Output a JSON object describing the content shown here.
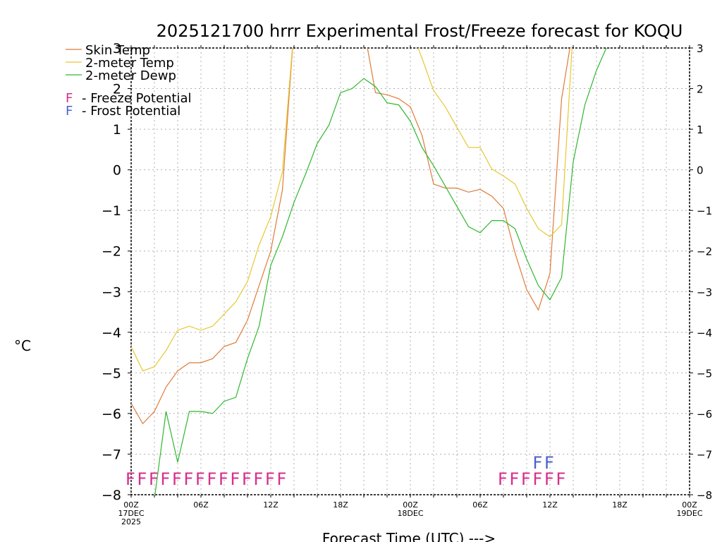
{
  "chart_data": {
    "type": "line",
    "title": "2025121700 hrrr Experimental Frost/Freeze forecast for KOQU",
    "ylabel": "°C",
    "xlabel": "Forecast Time (UTC) --->",
    "ylim": [
      -8,
      3
    ],
    "xlim": [
      0,
      48
    ],
    "y_ticks": [
      -8,
      -7,
      -6,
      -5,
      -4,
      -3,
      -2,
      -1,
      0,
      1,
      2,
      3
    ],
    "x_ticks": [
      {
        "x": 0,
        "label": "00Z",
        "sub": "17DEC",
        "sub2": "2025"
      },
      {
        "x": 6,
        "label": "06Z",
        "sub": "",
        "sub2": ""
      },
      {
        "x": 12,
        "label": "12Z",
        "sub": "",
        "sub2": ""
      },
      {
        "x": 18,
        "label": "18Z",
        "sub": "",
        "sub2": ""
      },
      {
        "x": 24,
        "label": "00Z",
        "sub": "18DEC",
        "sub2": ""
      },
      {
        "x": 30,
        "label": "06Z",
        "sub": "",
        "sub2": ""
      },
      {
        "x": 36,
        "label": "12Z",
        "sub": "",
        "sub2": ""
      },
      {
        "x": 42,
        "label": "18Z",
        "sub": "",
        "sub2": ""
      },
      {
        "x": 48,
        "label": "00Z",
        "sub": "19DEC",
        "sub2": ""
      }
    ],
    "grid": true,
    "series": [
      {
        "name": "Skin Temp",
        "color": "#e07b39",
        "x": [
          0,
          1,
          2,
          3,
          4,
          5,
          6,
          7,
          8,
          9,
          10,
          11,
          12,
          13,
          14,
          20,
          21,
          22,
          23,
          24,
          25,
          26,
          27,
          28,
          29,
          30,
          31,
          32,
          33,
          34,
          35,
          36,
          37,
          38
        ],
        "values": [
          -5.75,
          -6.25,
          -5.95,
          -5.35,
          -4.95,
          -4.75,
          -4.75,
          -4.65,
          -4.35,
          -4.25,
          -3.7,
          -2.85,
          -2.0,
          -0.5,
          3.5,
          3.5,
          1.9,
          1.85,
          1.75,
          1.55,
          0.85,
          -0.35,
          -0.45,
          -0.45,
          -0.55,
          -0.48,
          -0.65,
          -0.95,
          -2.05,
          -2.95,
          -3.45,
          -2.55,
          1.75,
          3.5
        ]
      },
      {
        "name": "2-meter Temp",
        "color": "#e6c832",
        "x": [
          0,
          1,
          2,
          3,
          4,
          5,
          6,
          7,
          8,
          9,
          10,
          11,
          12,
          13,
          14,
          24,
          25,
          26,
          27,
          28,
          29,
          30,
          31,
          32,
          33,
          34,
          35,
          36,
          37,
          38
        ],
        "values": [
          -4.35,
          -4.95,
          -4.85,
          -4.45,
          -3.95,
          -3.85,
          -3.95,
          -3.85,
          -3.55,
          -3.25,
          -2.75,
          -1.85,
          -1.15,
          -0.05,
          3.5,
          3.5,
          2.75,
          1.95,
          1.55,
          1.05,
          0.55,
          0.55,
          0.02,
          -0.15,
          -0.35,
          -0.95,
          -1.45,
          -1.65,
          -1.35,
          3.5
        ]
      },
      {
        "name": "2-meter Dewp",
        "color": "#2eb82e",
        "x": [
          2,
          3,
          4,
          5,
          6,
          7,
          8,
          9,
          10,
          11,
          12,
          13,
          14,
          15,
          16,
          17,
          18,
          19,
          20,
          21,
          22,
          23,
          24,
          25,
          26,
          27,
          28,
          29,
          30,
          31,
          32,
          33,
          34,
          35,
          36,
          37,
          38,
          39,
          40,
          41
        ],
        "values": [
          -8.1,
          -5.95,
          -7.2,
          -5.95,
          -5.95,
          -6.0,
          -5.7,
          -5.6,
          -4.65,
          -3.85,
          -2.35,
          -1.65,
          -0.8,
          -0.1,
          0.65,
          1.1,
          1.9,
          2.0,
          2.25,
          2.05,
          1.65,
          1.6,
          1.2,
          0.55,
          0.1,
          -0.4,
          -0.9,
          -1.4,
          -1.55,
          -1.25,
          -1.25,
          -1.45,
          -2.2,
          -2.85,
          -3.2,
          -2.65,
          0.2,
          1.6,
          2.45,
          3.1
        ]
      }
    ],
    "legend": {
      "placement": "top-left",
      "items": [
        "Skin Temp",
        "2-meter Temp",
        "2-meter Dewp"
      ],
      "potentials": [
        {
          "mark": "F",
          "text": "- Freeze Potential",
          "color": "#d62f8a"
        },
        {
          "mark": "F",
          "text": "- Frost Potential",
          "color": "#4b5fcc"
        }
      ]
    },
    "freeze_marks": {
      "color": "#d62f8a",
      "y": -7.6,
      "x": [
        0,
        1,
        2,
        3,
        4,
        5,
        6,
        7,
        8,
        9,
        10,
        11,
        12,
        13,
        32,
        33,
        34,
        35,
        36,
        37
      ]
    },
    "frost_marks": {
      "color": "#4b5fcc",
      "y": -7.2,
      "x": [
        35,
        36
      ]
    }
  }
}
